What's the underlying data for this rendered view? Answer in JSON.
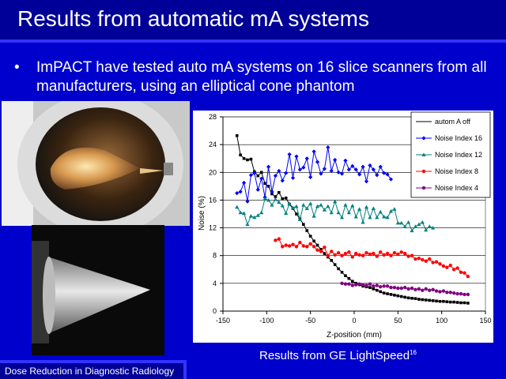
{
  "slide": {
    "title": "Results from automatic mA systems",
    "bullet": "ImPACT have tested auto mA systems on 16 slice scanners from all manufacturers, using an elliptical cone phantom",
    "caption": "Results from GE LightSpeed",
    "caption_sup": "16",
    "footer": "Dose Reduction in Diagnostic Radiology",
    "colors": {
      "background": "#0000cc",
      "title_bar": "#000099",
      "accent": "#3333ff"
    }
  },
  "chart_data": {
    "type": "line",
    "title": "",
    "xlabel": "Z-position (mm)",
    "ylabel": "Noise (%)",
    "xlim": [
      -150,
      150
    ],
    "ylim": [
      0,
      28
    ],
    "xticks": [
      -150,
      -100,
      -50,
      0,
      50,
      100,
      150
    ],
    "yticks": [
      0,
      4,
      8,
      12,
      16,
      20,
      24,
      28
    ],
    "grid": "horizontal",
    "legend_position": "top-right",
    "series": [
      {
        "name": "autom A off",
        "color": "#000000",
        "marker": "square",
        "x": [
          -134,
          -130,
          -126,
          -122,
          -118,
          -114,
          -110,
          -106,
          -102,
          -98,
          -94,
          -90,
          -86,
          -82,
          -78,
          -74,
          -70,
          -66,
          -62,
          -58,
          -54,
          -50,
          -46,
          -42,
          -38,
          -34,
          -30,
          -26,
          -22,
          -18,
          -14,
          -10,
          -6,
          -2,
          2,
          6,
          10,
          14,
          18,
          22,
          26,
          30,
          34,
          38,
          42,
          46,
          50,
          54,
          58,
          62,
          66,
          70,
          74,
          78,
          82,
          86,
          90,
          94,
          98,
          102,
          106,
          110,
          114,
          118,
          122,
          126,
          130
        ],
        "y": [
          25.3,
          22.5,
          22.0,
          21.8,
          21.9,
          20.1,
          19.5,
          20.0,
          18.4,
          18.0,
          16.9,
          16.5,
          17.1,
          16.2,
          16.3,
          15.4,
          14.8,
          14.0,
          13.3,
          12.5,
          11.6,
          10.8,
          10.1,
          9.5,
          8.9,
          8.3,
          7.8,
          7.3,
          6.7,
          6.1,
          5.6,
          5.1,
          4.7,
          4.3,
          4.0,
          3.8,
          3.6,
          3.5,
          3.4,
          3.2,
          3.0,
          2.8,
          2.6,
          2.5,
          2.4,
          2.3,
          2.2,
          2.1,
          2.0,
          1.9,
          1.85,
          1.8,
          1.7,
          1.65,
          1.6,
          1.55,
          1.5,
          1.45,
          1.4,
          1.4,
          1.35,
          1.3,
          1.3,
          1.25,
          1.2,
          1.2,
          1.15
        ]
      },
      {
        "name": "Noise Index 16",
        "color": "#0000ff",
        "marker": "diamond",
        "x": [
          -134,
          -130,
          -126,
          -122,
          -118,
          -114,
          -110,
          -106,
          -102,
          -98,
          -94,
          -90,
          -86,
          -82,
          -78,
          -74,
          -70,
          -66,
          -62,
          -58,
          -54,
          -50,
          -46,
          -42,
          -38,
          -34,
          -30,
          -26,
          -22,
          -18,
          -14,
          -10,
          -6,
          -2,
          2,
          6,
          10,
          14,
          18,
          22,
          26,
          30,
          34,
          38,
          42
        ],
        "y": [
          17.0,
          17.2,
          18.5,
          15.8,
          19.6,
          19.9,
          17.5,
          19.1,
          16.4,
          20.8,
          17.2,
          19.5,
          20.2,
          18.8,
          19.9,
          22.6,
          19.2,
          22.3,
          20.4,
          20.7,
          22.0,
          19.3,
          23.0,
          21.5,
          19.8,
          20.5,
          23.6,
          20.2,
          21.8,
          20.0,
          19.8,
          21.7,
          20.4,
          20.9,
          20.4,
          19.7,
          20.8,
          18.7,
          21.0,
          20.4,
          19.6,
          20.8,
          19.9,
          19.7,
          19.0
        ]
      },
      {
        "name": "Noise Index 12",
        "color": "#008080",
        "marker": "triangle",
        "x": [
          -134,
          -130,
          -126,
          -122,
          -118,
          -114,
          -110,
          -106,
          -102,
          -98,
          -94,
          -90,
          -86,
          -82,
          -78,
          -74,
          -70,
          -66,
          -62,
          -58,
          -54,
          -50,
          -46,
          -42,
          -38,
          -34,
          -30,
          -26,
          -22,
          -18,
          -14,
          -10,
          -6,
          -2,
          2,
          6,
          10,
          14,
          18,
          22,
          26,
          30,
          34,
          38,
          42,
          46,
          50,
          54,
          58,
          62,
          66,
          70,
          74,
          78,
          82,
          86,
          90
        ],
        "y": [
          15.0,
          14.2,
          14.1,
          12.5,
          13.7,
          13.5,
          13.8,
          14.2,
          16.2,
          16.0,
          15.3,
          16.1,
          15.7,
          15.2,
          14.1,
          15.5,
          14.9,
          15.1,
          13.2,
          15.3,
          14.8,
          15.5,
          13.7,
          15.1,
          15.3,
          14.6,
          15.1,
          14.2,
          15.8,
          14.2,
          13.5,
          15.3,
          14.2,
          15.2,
          13.6,
          14.7,
          12.8,
          15.0,
          13.5,
          14.8,
          13.5,
          14.3,
          13.6,
          13.5,
          14.4,
          14.7,
          12.7,
          12.7,
          12.2,
          12.8,
          11.6,
          12.2,
          12.5,
          12.8,
          11.7,
          12.2,
          12.0
        ]
      },
      {
        "name": "Noise Index 8",
        "color": "#ff0000",
        "marker": "circle",
        "x": [
          -90,
          -86,
          -82,
          -78,
          -74,
          -70,
          -66,
          -62,
          -58,
          -54,
          -50,
          -46,
          -42,
          -38,
          -34,
          -30,
          -26,
          -22,
          -18,
          -14,
          -10,
          -6,
          -2,
          2,
          6,
          10,
          14,
          18,
          22,
          26,
          30,
          34,
          38,
          42,
          46,
          50,
          54,
          58,
          62,
          66,
          70,
          74,
          78,
          82,
          86,
          90,
          94,
          98,
          102,
          106,
          110,
          114,
          118,
          122,
          126,
          130
        ],
        "y": [
          10.2,
          10.4,
          9.3,
          9.5,
          9.4,
          9.6,
          9.3,
          9.9,
          9.4,
          9.3,
          9.7,
          9.3,
          8.8,
          8.6,
          9.2,
          8.0,
          8.6,
          8.1,
          8.4,
          8.0,
          8.3,
          8.5,
          7.8,
          8.3,
          8.1,
          8.0,
          8.4,
          8.2,
          8.3,
          7.9,
          8.5,
          8.1,
          8.3,
          8.0,
          8.4,
          8.2,
          8.5,
          8.3,
          7.9,
          8.0,
          7.5,
          7.6,
          7.4,
          7.2,
          7.5,
          7.0,
          7.1,
          6.8,
          6.5,
          6.3,
          6.6,
          6.0,
          6.2,
          5.6,
          5.5,
          5.0
        ]
      },
      {
        "name": "Noise Index 4",
        "color": "#800080",
        "marker": "circle",
        "x": [
          -14,
          -10,
          -6,
          -2,
          2,
          6,
          10,
          14,
          18,
          22,
          26,
          30,
          34,
          38,
          42,
          46,
          50,
          54,
          58,
          62,
          66,
          70,
          74,
          78,
          82,
          86,
          90,
          94,
          98,
          102,
          106,
          110,
          114,
          118,
          122,
          126,
          130
        ],
        "y": [
          4.0,
          3.9,
          3.9,
          3.7,
          3.8,
          3.9,
          3.8,
          3.7,
          3.9,
          3.6,
          3.7,
          3.5,
          3.6,
          3.6,
          3.4,
          3.4,
          3.3,
          3.3,
          3.4,
          3.2,
          3.3,
          3.1,
          3.2,
          3.0,
          3.2,
          3.0,
          3.1,
          2.9,
          2.8,
          2.9,
          2.7,
          2.7,
          2.6,
          2.5,
          2.5,
          2.4,
          2.4
        ]
      }
    ]
  }
}
